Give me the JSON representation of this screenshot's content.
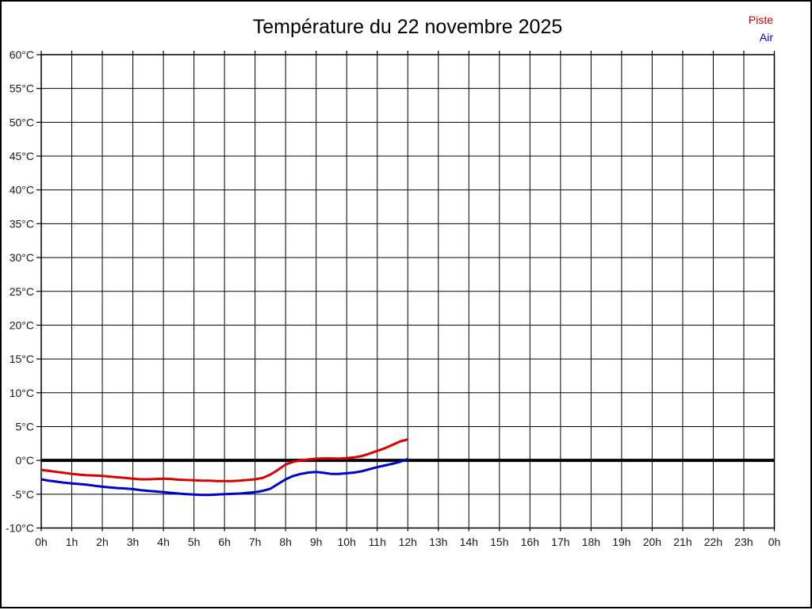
{
  "page": {
    "background": "#ffffff",
    "border_color": "#000000"
  },
  "title": "Température du 22 novembre 2025",
  "legend": {
    "items": [
      {
        "label": "Piste",
        "color": "#cc0000"
      },
      {
        "label": "Air",
        "color": "#0000cc"
      }
    ]
  },
  "chart_data": {
    "type": "line",
    "title": "Température du 22 novembre 2025",
    "xlabel": "",
    "ylabel": "",
    "xlim": [
      0,
      24
    ],
    "ylim": [
      -10,
      60
    ],
    "grid": true,
    "grid_color": "#000000",
    "legend_position": "top-right",
    "x_tick_hours": [
      0,
      1,
      2,
      3,
      4,
      5,
      6,
      7,
      8,
      9,
      10,
      11,
      12,
      13,
      14,
      15,
      16,
      17,
      18,
      19,
      20,
      21,
      22,
      23,
      24
    ],
    "x_tick_labels": [
      "0h",
      "1h",
      "2h",
      "3h",
      "4h",
      "5h",
      "6h",
      "7h",
      "8h",
      "9h",
      "10h",
      "11h",
      "12h",
      "13h",
      "14h",
      "15h",
      "16h",
      "17h",
      "18h",
      "19h",
      "20h",
      "21h",
      "22h",
      "23h",
      "0h"
    ],
    "y_tick_values": [
      60,
      55,
      50,
      45,
      40,
      35,
      30,
      25,
      20,
      15,
      10,
      5,
      0,
      -5,
      -10
    ],
    "y_tick_labels": [
      "60°C",
      "55°C",
      "50°C",
      "45°C",
      "40°C",
      "35°C",
      "30°C",
      "25°C",
      "20°C",
      "15°C",
      "10°C",
      "5°C",
      "0°C",
      "-5°C",
      "-10°C"
    ],
    "zero_line": {
      "value": 0,
      "color": "#000000",
      "width": 4
    },
    "x_start": 0,
    "x_step": 0.25,
    "series": [
      {
        "name": "Piste",
        "color": "#dd0000",
        "values": [
          -1.4,
          -1.55,
          -1.7,
          -1.85,
          -2.0,
          -2.1,
          -2.2,
          -2.25,
          -2.3,
          -2.4,
          -2.5,
          -2.6,
          -2.7,
          -2.8,
          -2.8,
          -2.75,
          -2.7,
          -2.75,
          -2.85,
          -2.9,
          -2.95,
          -3.0,
          -3.0,
          -3.05,
          -3.05,
          -3.05,
          -3.0,
          -2.9,
          -2.8,
          -2.6,
          -2.1,
          -1.4,
          -0.6,
          -0.2,
          0.0,
          0.15,
          0.25,
          0.3,
          0.3,
          0.25,
          0.35,
          0.45,
          0.65,
          1.0,
          1.4,
          1.8,
          2.3,
          2.8,
          3.1
        ]
      },
      {
        "name": "Air",
        "color": "#0000cc",
        "values": [
          -2.8,
          -3.0,
          -3.15,
          -3.3,
          -3.4,
          -3.5,
          -3.6,
          -3.75,
          -3.9,
          -4.0,
          -4.1,
          -4.15,
          -4.25,
          -4.4,
          -4.5,
          -4.6,
          -4.7,
          -4.8,
          -4.9,
          -5.0,
          -5.05,
          -5.1,
          -5.1,
          -5.05,
          -5.0,
          -4.95,
          -4.9,
          -4.8,
          -4.7,
          -4.5,
          -4.2,
          -3.5,
          -2.8,
          -2.3,
          -2.0,
          -1.8,
          -1.7,
          -1.85,
          -2.0,
          -2.0,
          -1.9,
          -1.8,
          -1.6,
          -1.3,
          -1.0,
          -0.75,
          -0.5,
          -0.2,
          0.2
        ]
      }
    ]
  }
}
